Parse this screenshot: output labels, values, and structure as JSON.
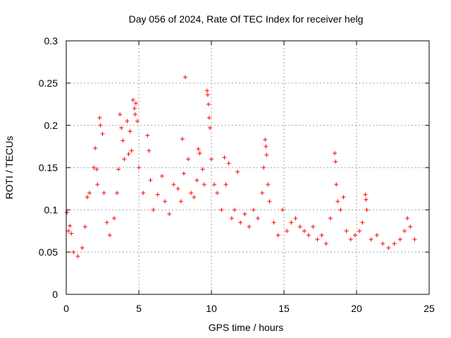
{
  "chart_data": {
    "type": "scatter",
    "title": "Day 056 of 2024, Rate Of TEC Index for receiver helg",
    "xlabel": "GPS time / hours",
    "ylabel": "ROTI / TECUs",
    "xlim": [
      0,
      25
    ],
    "ylim": [
      0,
      0.3
    ],
    "x_ticks": [
      0,
      5,
      10,
      15,
      20,
      25
    ],
    "x_tick_labels": [
      "0",
      "5",
      "10",
      "15",
      "20",
      "25"
    ],
    "y_ticks": [
      0,
      0.05,
      0.1,
      0.15,
      0.2,
      0.25,
      0.3
    ],
    "y_tick_labels": [
      "0",
      "0.05",
      "0.1",
      "0.15",
      "0.2",
      "0.25",
      "0.3"
    ],
    "grid": true,
    "marker": "+",
    "color": "#ff0000",
    "series": [
      {
        "points": [
          [
            0.05,
            0.097
          ],
          [
            0.15,
            0.075
          ],
          [
            0.25,
            0.081
          ],
          [
            0.35,
            0.072
          ],
          [
            0.5,
            0.05
          ],
          [
            0.8,
            0.045
          ],
          [
            1.1,
            0.055
          ],
          [
            1.3,
            0.08
          ],
          [
            1.45,
            0.115
          ],
          [
            1.6,
            0.12
          ],
          [
            1.9,
            0.15
          ],
          [
            2.0,
            0.173
          ],
          [
            2.1,
            0.148
          ],
          [
            2.15,
            0.13
          ],
          [
            2.3,
            0.209
          ],
          [
            2.35,
            0.2
          ],
          [
            2.5,
            0.19
          ],
          [
            2.6,
            0.12
          ],
          [
            2.8,
            0.085
          ],
          [
            3.0,
            0.07
          ],
          [
            3.3,
            0.09
          ],
          [
            3.5,
            0.12
          ],
          [
            3.6,
            0.148
          ],
          [
            3.7,
            0.213
          ],
          [
            3.8,
            0.197
          ],
          [
            3.9,
            0.182
          ],
          [
            4.0,
            0.16
          ],
          [
            4.2,
            0.205
          ],
          [
            4.3,
            0.166
          ],
          [
            4.4,
            0.193
          ],
          [
            4.5,
            0.17
          ],
          [
            4.6,
            0.23
          ],
          [
            4.7,
            0.22
          ],
          [
            4.75,
            0.213
          ],
          [
            4.8,
            0.226
          ],
          [
            4.9,
            0.205
          ],
          [
            5.0,
            0.15
          ],
          [
            5.3,
            0.12
          ],
          [
            5.6,
            0.188
          ],
          [
            5.7,
            0.17
          ],
          [
            5.8,
            0.135
          ],
          [
            6.0,
            0.1
          ],
          [
            6.3,
            0.118
          ],
          [
            6.6,
            0.14
          ],
          [
            6.8,
            0.11
          ],
          [
            7.1,
            0.095
          ],
          [
            7.4,
            0.13
          ],
          [
            7.7,
            0.125
          ],
          [
            7.9,
            0.11
          ],
          [
            8.0,
            0.184
          ],
          [
            8.1,
            0.143
          ],
          [
            8.2,
            0.257
          ],
          [
            8.4,
            0.16
          ],
          [
            8.6,
            0.12
          ],
          [
            8.8,
            0.115
          ],
          [
            9.0,
            0.135
          ],
          [
            9.1,
            0.172
          ],
          [
            9.2,
            0.167
          ],
          [
            9.4,
            0.148
          ],
          [
            9.5,
            0.13
          ],
          [
            9.7,
            0.241
          ],
          [
            9.75,
            0.236
          ],
          [
            9.8,
            0.225
          ],
          [
            9.85,
            0.209
          ],
          [
            9.9,
            0.197
          ],
          [
            10.0,
            0.16
          ],
          [
            10.2,
            0.13
          ],
          [
            10.4,
            0.12
          ],
          [
            10.7,
            0.1
          ],
          [
            10.9,
            0.162
          ],
          [
            11.0,
            0.13
          ],
          [
            11.2,
            0.155
          ],
          [
            11.4,
            0.09
          ],
          [
            11.6,
            0.1
          ],
          [
            11.8,
            0.145
          ],
          [
            12.0,
            0.085
          ],
          [
            12.3,
            0.095
          ],
          [
            12.6,
            0.08
          ],
          [
            12.9,
            0.1
          ],
          [
            13.2,
            0.09
          ],
          [
            13.5,
            0.12
          ],
          [
            13.6,
            0.15
          ],
          [
            13.7,
            0.183
          ],
          [
            13.75,
            0.175
          ],
          [
            13.8,
            0.165
          ],
          [
            13.9,
            0.13
          ],
          [
            14.0,
            0.11
          ],
          [
            14.3,
            0.085
          ],
          [
            14.6,
            0.07
          ],
          [
            14.9,
            0.1
          ],
          [
            15.2,
            0.075
          ],
          [
            15.5,
            0.085
          ],
          [
            15.8,
            0.09
          ],
          [
            16.1,
            0.08
          ],
          [
            16.4,
            0.075
          ],
          [
            16.7,
            0.07
          ],
          [
            17.0,
            0.08
          ],
          [
            17.3,
            0.065
          ],
          [
            17.6,
            0.07
          ],
          [
            17.9,
            0.06
          ],
          [
            18.2,
            0.09
          ],
          [
            18.5,
            0.167
          ],
          [
            18.55,
            0.157
          ],
          [
            18.6,
            0.13
          ],
          [
            18.7,
            0.11
          ],
          [
            18.9,
            0.1
          ],
          [
            19.1,
            0.115
          ],
          [
            19.3,
            0.075
          ],
          [
            19.6,
            0.065
          ],
          [
            19.9,
            0.07
          ],
          [
            20.2,
            0.075
          ],
          [
            20.4,
            0.085
          ],
          [
            20.6,
            0.118
          ],
          [
            20.65,
            0.112
          ],
          [
            20.7,
            0.1
          ],
          [
            21.0,
            0.065
          ],
          [
            21.4,
            0.07
          ],
          [
            21.8,
            0.06
          ],
          [
            22.2,
            0.055
          ],
          [
            22.6,
            0.06
          ],
          [
            23.0,
            0.065
          ],
          [
            23.3,
            0.075
          ],
          [
            23.5,
            0.09
          ],
          [
            23.7,
            0.08
          ],
          [
            24.0,
            0.065
          ]
        ]
      }
    ]
  }
}
